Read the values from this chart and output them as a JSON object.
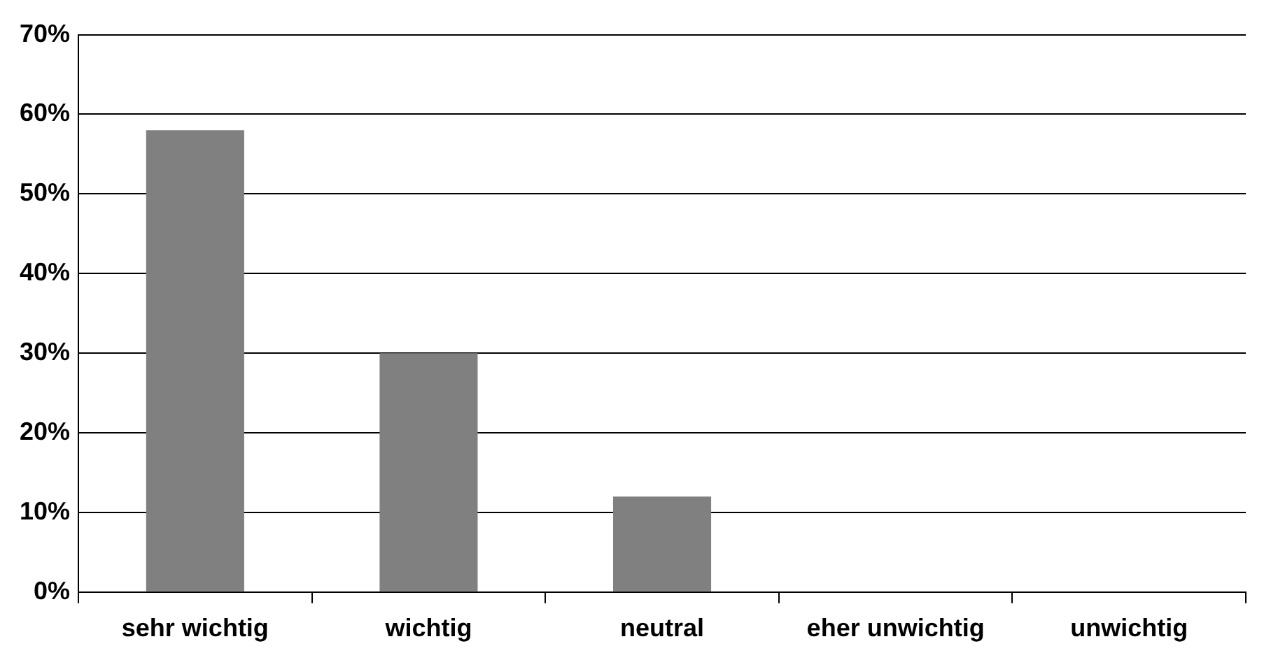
{
  "chart_data": {
    "type": "bar",
    "categories": [
      "sehr wichtig",
      "wichtig",
      "neutral",
      "eher unwichtig",
      "unwichtig"
    ],
    "values": [
      58,
      30,
      12,
      0,
      0
    ],
    "color": "#808080",
    "ylim": [
      0,
      70
    ],
    "yticks": [
      {
        "value": 0,
        "label": "0%"
      },
      {
        "value": 10,
        "label": "10%"
      },
      {
        "value": 20,
        "label": "20%"
      },
      {
        "value": 30,
        "label": "30%"
      },
      {
        "value": 40,
        "label": "40%"
      },
      {
        "value": 50,
        "label": "50%"
      },
      {
        "value": 60,
        "label": "60%"
      },
      {
        "value": 70,
        "label": "70%"
      }
    ],
    "grid": "y",
    "legend": false
  }
}
